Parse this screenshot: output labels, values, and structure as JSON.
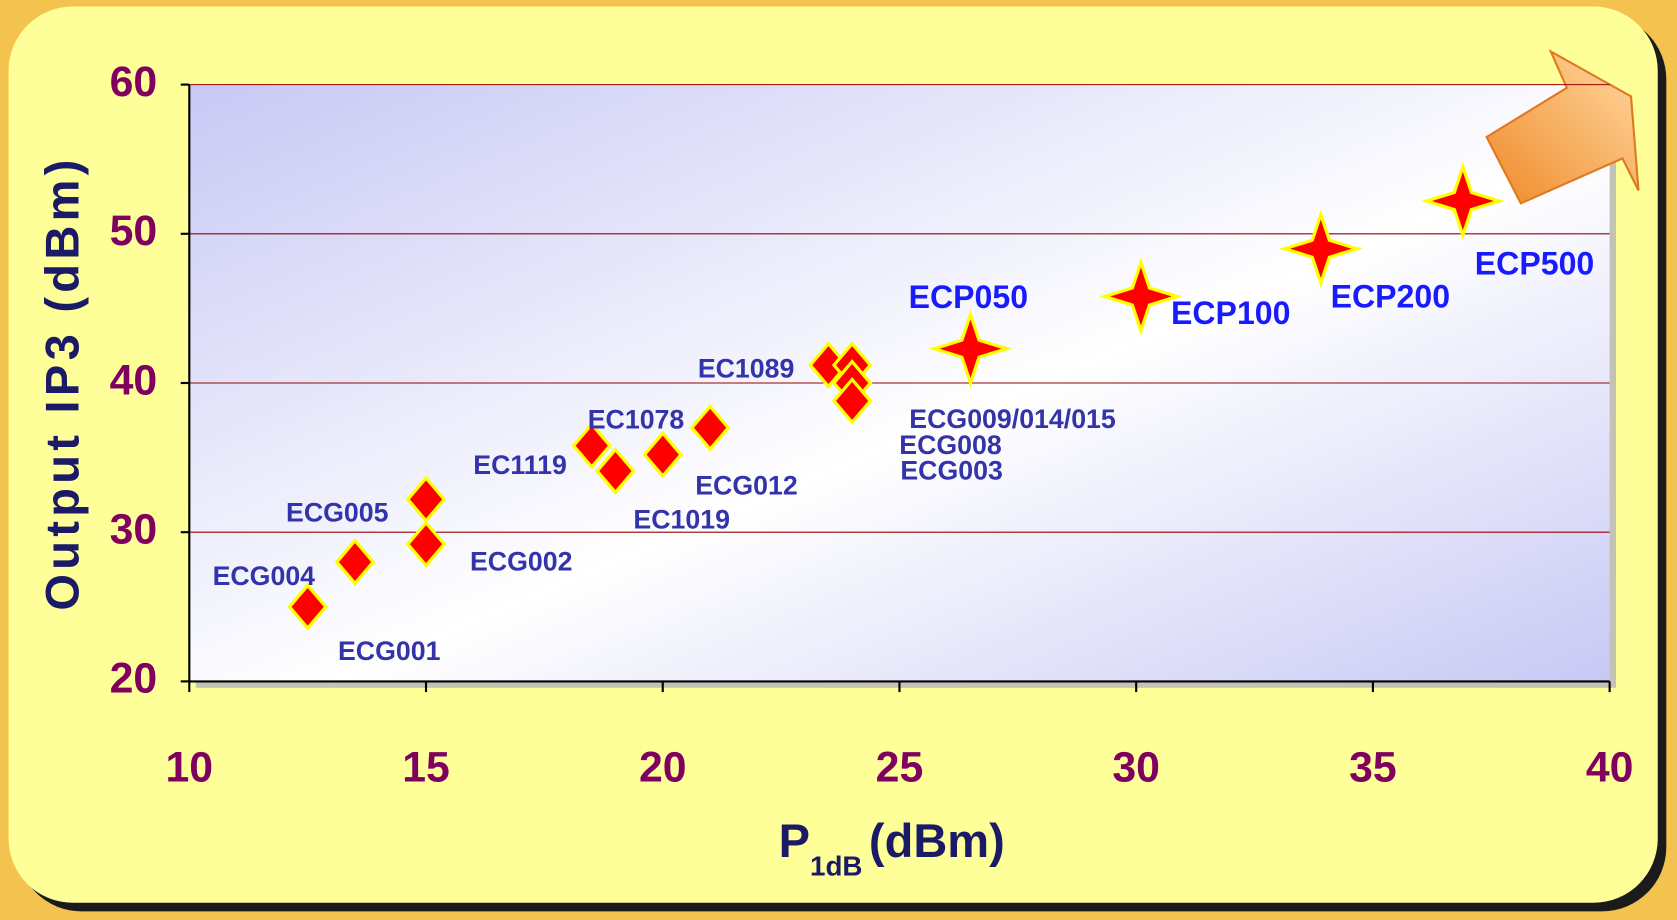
{
  "chart_data": {
    "type": "scatter",
    "x_label": {
      "main": "P",
      "sub": "1dB",
      "unit": "(dBm)"
    },
    "y_label": "Output IP3 (dBm)",
    "xlim": [
      10,
      40
    ],
    "xticks": [
      10,
      15,
      20,
      25,
      30,
      35,
      40
    ],
    "ylim": [
      20,
      60
    ],
    "yticks": [
      20,
      30,
      40,
      50,
      60
    ],
    "grid": true,
    "series": [
      {
        "marker": "diamond",
        "color": "#ff0000",
        "edge_color": "#ffff00",
        "label_color": "#3333aa",
        "x": [
          12.5,
          13.5,
          15,
          15,
          18.5,
          19,
          20,
          21,
          23.5,
          24,
          24,
          24
        ],
        "values": [
          25,
          28,
          29.2,
          32.2,
          35.8,
          34.1,
          35.2,
          37,
          41.2,
          41.2,
          40,
          38.8
        ],
        "labels": [
          "ECG004",
          "ECG001",
          "ECG002",
          "ECG005",
          "EC1119",
          "EC1019",
          "EC1078",
          "ECG012",
          "EC1089",
          "ECG009/014/015",
          "ECG008",
          "ECG003"
        ]
      },
      {
        "marker": "star",
        "color": "#ff0000",
        "edge_color": "#ffff00",
        "label_color": "#1a1aff",
        "x": [
          26.5,
          30.1,
          33.9,
          36.9
        ],
        "values": [
          42.3,
          45.8,
          49,
          52.2
        ],
        "labels": [
          "ECP050",
          "ECP100",
          "ECP200",
          "ECP500"
        ]
      }
    ]
  }
}
